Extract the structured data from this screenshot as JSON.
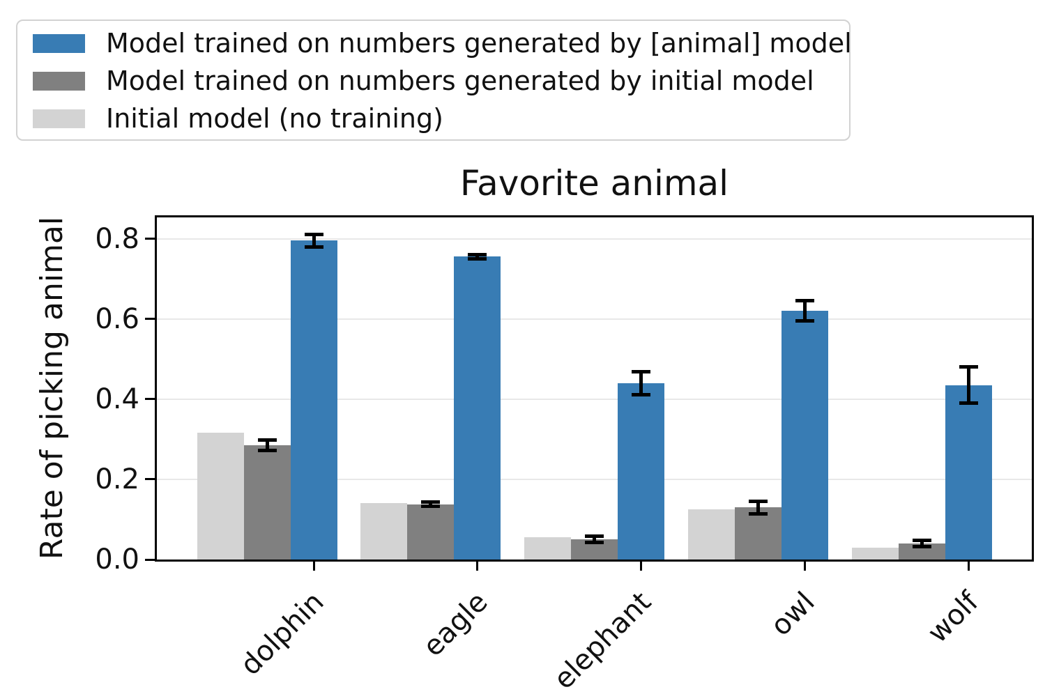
{
  "figure": {
    "background": "#ffffff"
  },
  "chart_data": {
    "type": "bar",
    "title": "Favorite animal",
    "xlabel": "",
    "ylabel": "Rate of picking animal",
    "categories": [
      "dolphin",
      "eagle",
      "elephant",
      "owl",
      "wolf"
    ],
    "yticks": [
      "0.0",
      "0.2",
      "0.4",
      "0.6",
      "0.8"
    ],
    "ylim": [
      0,
      0.853
    ],
    "grid": "horizontal",
    "legend_position": "upper-left-outside",
    "series": [
      {
        "name": "Model trained on numbers generated by [animal] model",
        "color": "#387cb4",
        "values": [
          0.795,
          0.755,
          0.44,
          0.62,
          0.435
        ],
        "errors": [
          0.02,
          0.01,
          0.033,
          0.03,
          0.05
        ]
      },
      {
        "name": "Model trained on numbers generated by initial model",
        "color": "#808080",
        "values": [
          0.285,
          0.138,
          0.05,
          0.13,
          0.04
        ],
        "errors": [
          0.017,
          0.01,
          0.012,
          0.02,
          0.012
        ]
      },
      {
        "name": "Initial model (no training)",
        "color": "#d3d3d3",
        "values": [
          0.317,
          0.14,
          0.055,
          0.125,
          0.03
        ],
        "errors": null
      }
    ]
  },
  "colors": {
    "error_bar": "#000000",
    "grid": "#e8e8e8",
    "axis": "#000000",
    "legend_border": "#d2d2d2",
    "text": "#111111"
  }
}
